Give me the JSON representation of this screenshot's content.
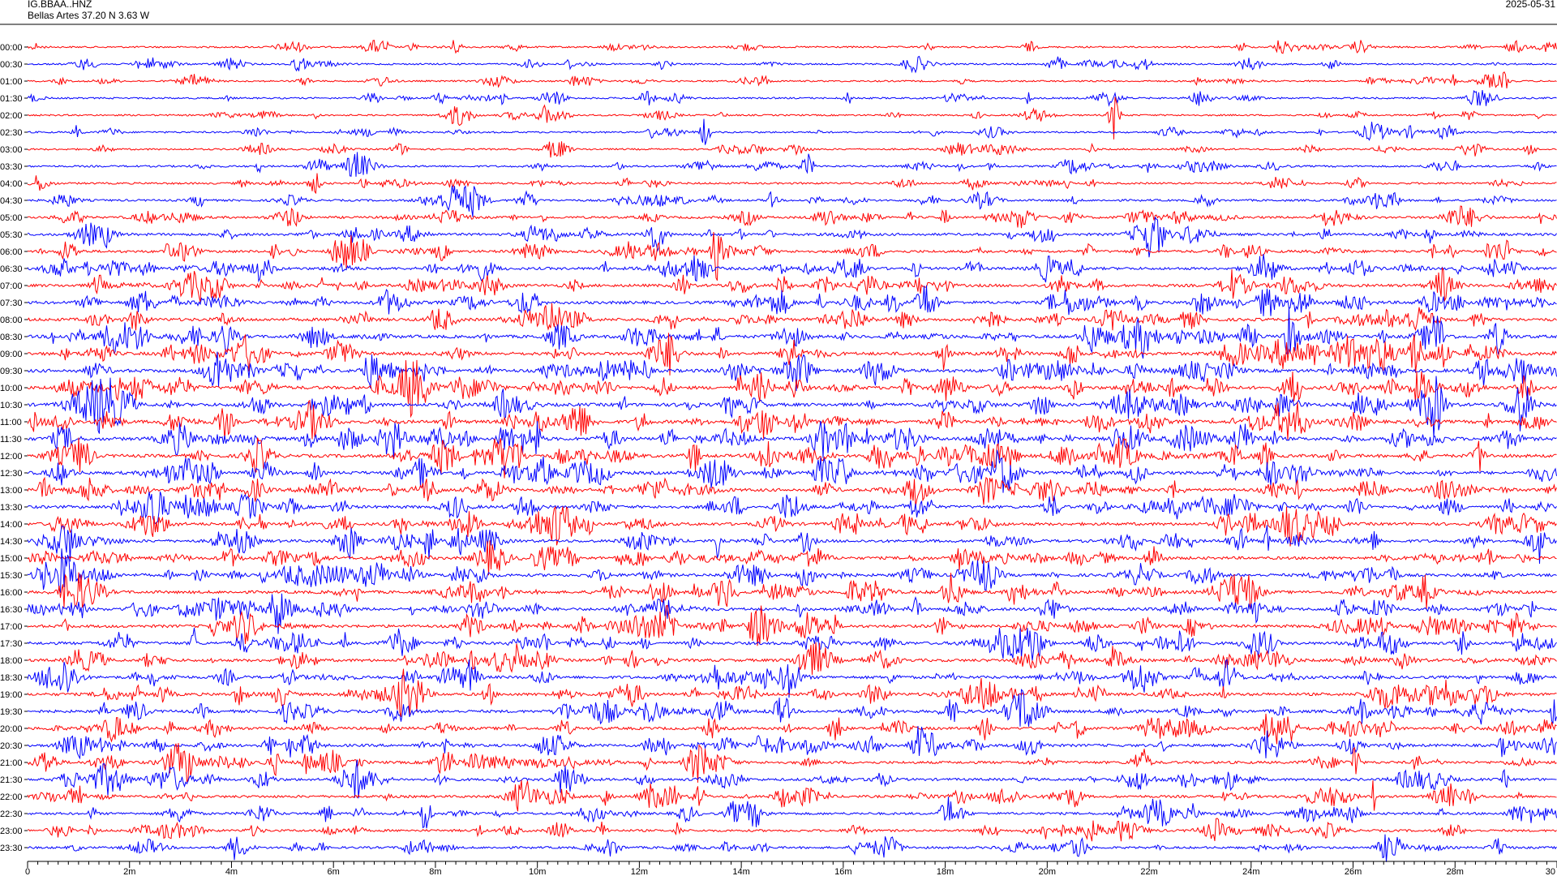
{
  "header": {
    "station": "IG.BBAA..HNZ",
    "location": "Bellas Artes  37.20 N 3.63 W",
    "date": "2025-05-31"
  },
  "chart_data": {
    "type": "line",
    "title": "",
    "xlabel": "",
    "ylabel": "",
    "x_ticks": [
      "0",
      "2m",
      "4m",
      "6m",
      "8m",
      "10m",
      "12m",
      "14m",
      "16m",
      "18m",
      "20m",
      "22m",
      "24m",
      "26m",
      "28m",
      "30"
    ],
    "xlim": [
      0,
      30
    ],
    "row_labels": [
      "00:00",
      "00:30",
      "01:00",
      "01:30",
      "02:00",
      "02:30",
      "03:00",
      "03:30",
      "04:00",
      "04:30",
      "05:00",
      "05:30",
      "06:00",
      "06:30",
      "07:00",
      "07:30",
      "08:00",
      "08:30",
      "09:00",
      "09:30",
      "10:00",
      "10:30",
      "11:00",
      "11:30",
      "12:00",
      "12:30",
      "13:00",
      "13:30",
      "14:00",
      "14:30",
      "15:00",
      "15:30",
      "16:00",
      "16:30",
      "17:00",
      "17:30",
      "18:00",
      "18:30",
      "19:00",
      "19:30",
      "20:00",
      "20:30",
      "21:00",
      "21:30",
      "22:00",
      "22:30",
      "23:00",
      "23:30"
    ],
    "activity_level": [
      0.22,
      0.22,
      0.2,
      0.22,
      0.2,
      0.22,
      0.22,
      0.28,
      0.3,
      0.34,
      0.42,
      0.5,
      0.52,
      0.56,
      0.6,
      0.64,
      0.66,
      0.68,
      0.72,
      0.74,
      0.72,
      0.74,
      0.74,
      0.76,
      0.72,
      0.7,
      0.66,
      0.64,
      0.64,
      0.62,
      0.6,
      0.62,
      0.62,
      0.62,
      0.62,
      0.6,
      0.6,
      0.62,
      0.62,
      0.6,
      0.58,
      0.56,
      0.54,
      0.52,
      0.5,
      0.46,
      0.42,
      0.4
    ],
    "colors": [
      "#ff0000",
      "#0000ff"
    ]
  }
}
